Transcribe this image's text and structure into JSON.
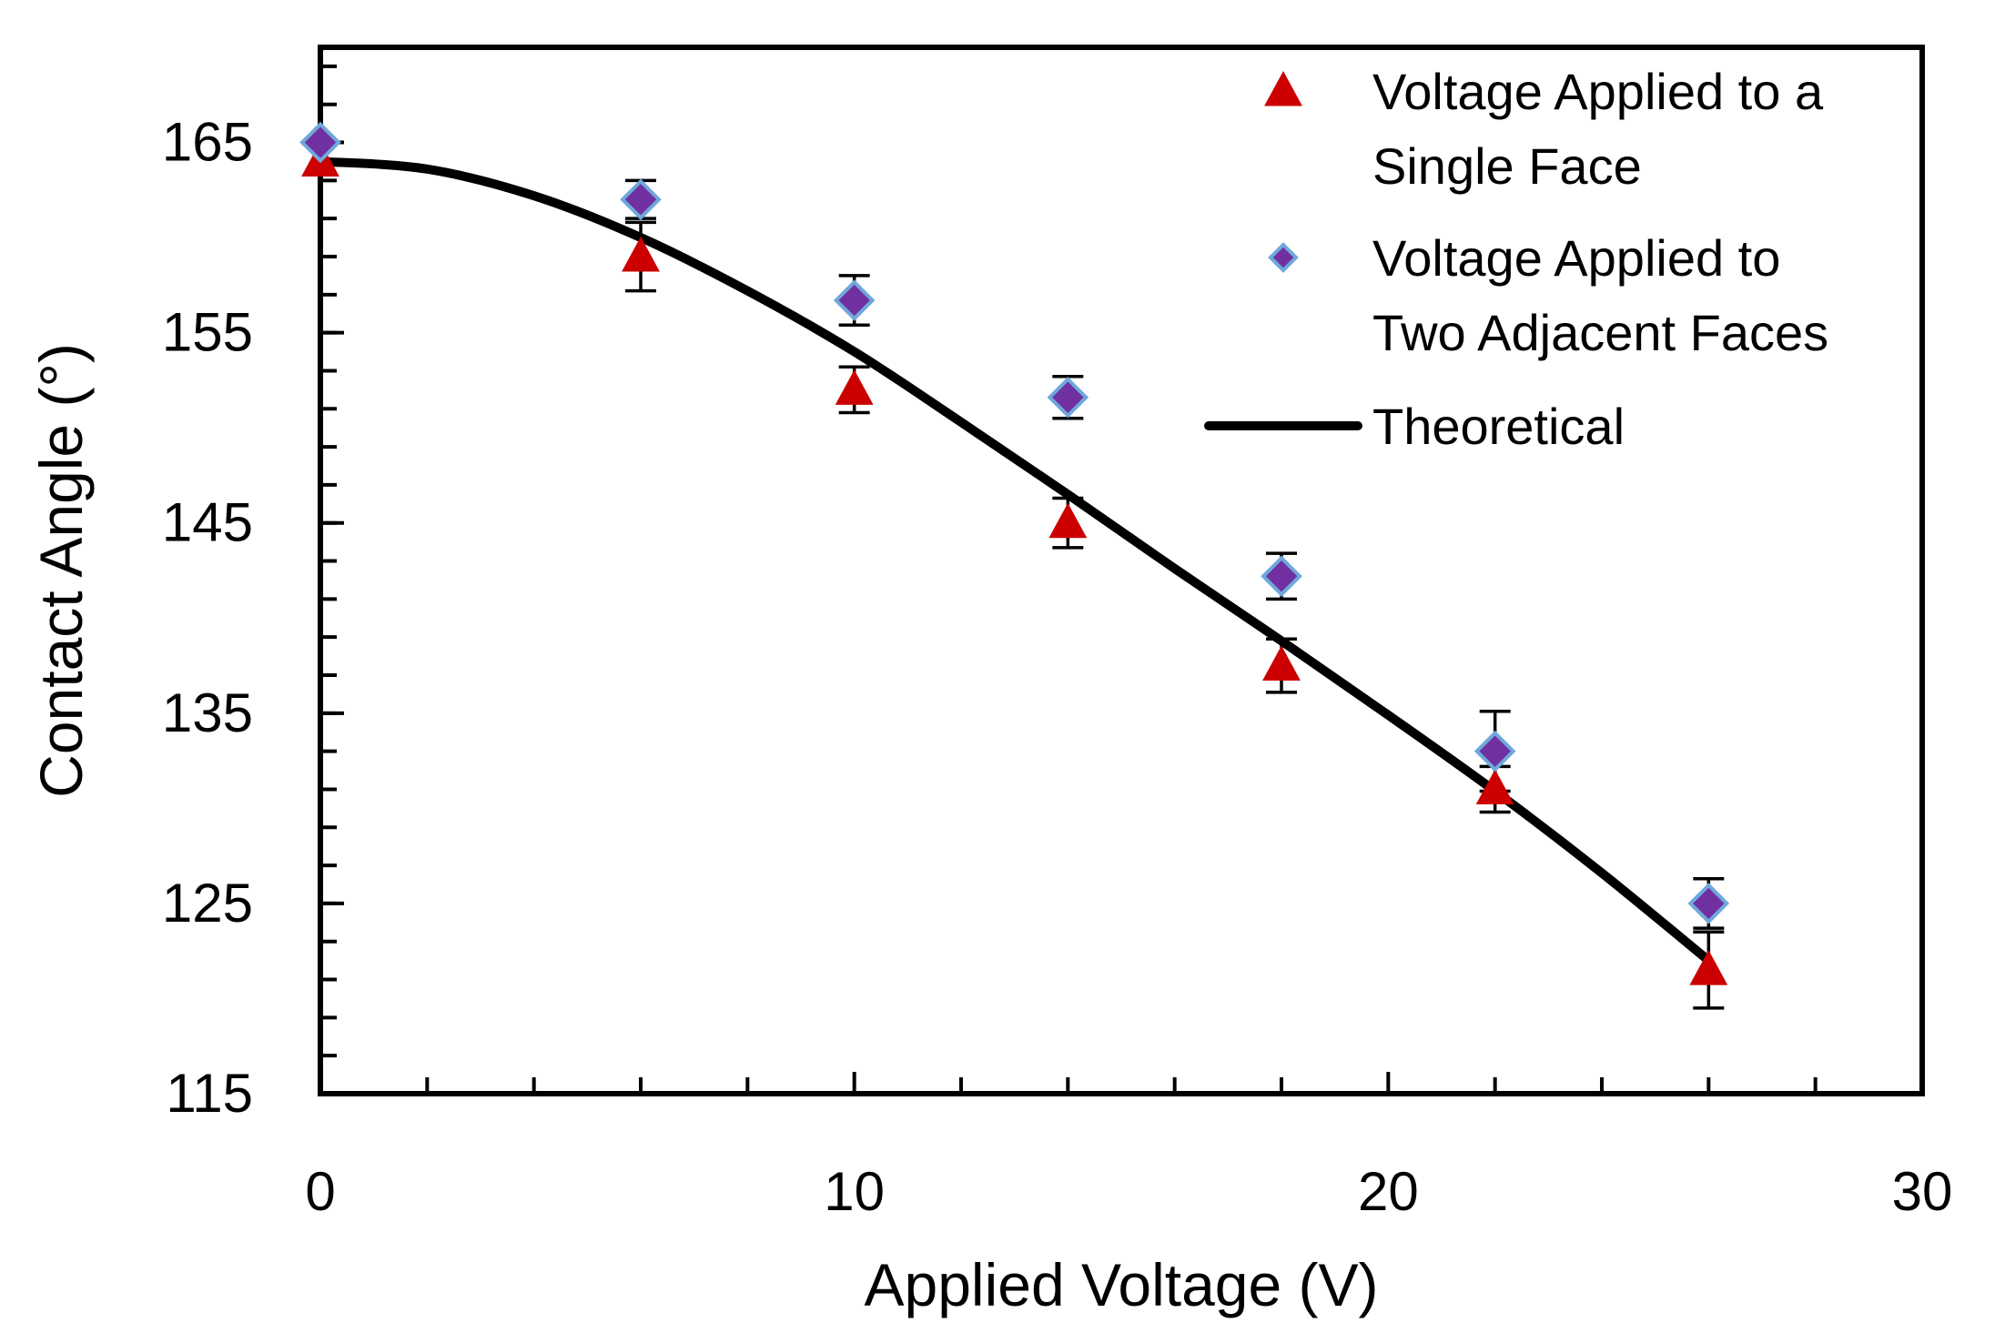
{
  "chart_data": {
    "type": "scatter",
    "xlabel": "Applied Voltage (V)",
    "ylabel": "Contact Angle (°)",
    "xlim": [
      0,
      30
    ],
    "ylim": [
      115,
      170
    ],
    "x_ticks": [
      0,
      10,
      20,
      30
    ],
    "y_ticks": [
      115,
      125,
      135,
      145,
      155,
      165
    ],
    "grid": false,
    "legend_position": "top-right",
    "series": [
      {
        "name": "Voltage Applied to a Single Face",
        "legend_lines": [
          "Voltage Applied to a",
          "Single Face"
        ],
        "marker": "triangle",
        "color": "#cc0000",
        "points": [
          {
            "x": 0,
            "y": 164,
            "err": 0
          },
          {
            "x": 6,
            "y": 159,
            "err": 1.8
          },
          {
            "x": 10,
            "y": 152,
            "err": 1.2
          },
          {
            "x": 14,
            "y": 145,
            "err": 1.3
          },
          {
            "x": 18,
            "y": 137.5,
            "err": 1.4
          },
          {
            "x": 22,
            "y": 131,
            "err": 1.2
          },
          {
            "x": 26,
            "y": 121.5,
            "err": 2.0
          }
        ]
      },
      {
        "name": "Voltage Applied to Two Adjacent Faces",
        "legend_lines": [
          "Voltage Applied to",
          "Two Adjacent Faces"
        ],
        "marker": "diamond",
        "color": "#7030a0",
        "edge_color": "#6fa8dc",
        "points": [
          {
            "x": 0,
            "y": 165,
            "err": 0
          },
          {
            "x": 6,
            "y": 162,
            "err": 1.0
          },
          {
            "x": 10,
            "y": 156.7,
            "err": 1.3
          },
          {
            "x": 14,
            "y": 151.6,
            "err": 1.1
          },
          {
            "x": 18,
            "y": 142.2,
            "err": 1.2
          },
          {
            "x": 22,
            "y": 133,
            "err": 2.1
          },
          {
            "x": 26,
            "y": 125,
            "err": 1.3
          }
        ]
      },
      {
        "name": "Theoretical",
        "legend_lines": [
          "Theoretical"
        ],
        "marker": "line",
        "color": "#000000",
        "points": [
          {
            "x": 0,
            "y": 164
          },
          {
            "x": 2,
            "y": 163.6
          },
          {
            "x": 4,
            "y": 162.2
          },
          {
            "x": 6,
            "y": 160
          },
          {
            "x": 8,
            "y": 157.2
          },
          {
            "x": 10,
            "y": 154
          },
          {
            "x": 12,
            "y": 150.3
          },
          {
            "x": 14,
            "y": 146.5
          },
          {
            "x": 16,
            "y": 142.6
          },
          {
            "x": 18,
            "y": 138.8
          },
          {
            "x": 20,
            "y": 134.9
          },
          {
            "x": 22,
            "y": 130.9
          },
          {
            "x": 24,
            "y": 126.6
          },
          {
            "x": 26,
            "y": 122
          }
        ]
      }
    ]
  }
}
